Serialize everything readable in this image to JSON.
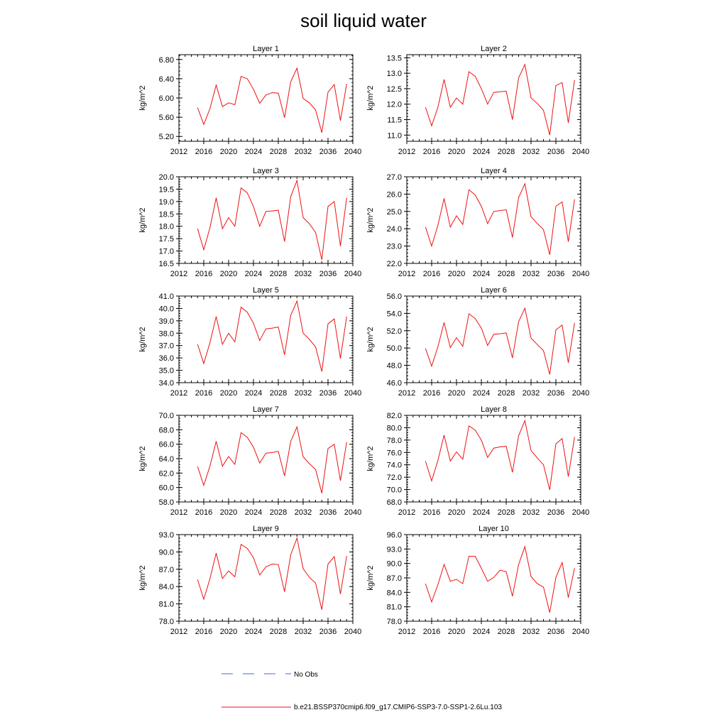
{
  "title": "soil liquid water",
  "legend": {
    "obs_label": "No Obs",
    "obs_color": "#4466dd",
    "model_label": "b.e21.BSSP370cmip6.f09_g17.CMIP6-SSP3-7.0-SSP1-2.6Lu.103",
    "model_color": "#ee1111"
  },
  "chart_data": [
    {
      "type": "line",
      "title": "Layer 1",
      "ylabel": "kg/m^2",
      "xlim": [
        2012,
        2040
      ],
      "ylim": [
        5.1,
        6.9
      ],
      "x_ticks": [
        2012,
        2016,
        2020,
        2024,
        2028,
        2032,
        2036,
        2040
      ],
      "x_tick_labels": [
        "2012",
        "2016",
        "2020",
        "2024",
        "2028",
        "2032",
        "2036",
        "2040"
      ],
      "y_ticks": [
        5.2,
        5.6,
        6.0,
        6.4,
        6.8
      ],
      "y_tick_labels": [
        "5.20",
        "5.60",
        "6.00",
        "6.40",
        "6.80"
      ],
      "x": [
        2015,
        2016,
        2017,
        2018,
        2019,
        2020,
        2021,
        2022,
        2023,
        2024,
        2025,
        2026,
        2027,
        2028,
        2029,
        2030,
        2031,
        2032,
        2033,
        2034,
        2035,
        2036,
        2037,
        2038,
        2039
      ],
      "series": [
        {
          "values": [
            5.8,
            5.45,
            5.78,
            6.27,
            5.82,
            5.9,
            5.86,
            6.45,
            6.4,
            6.18,
            5.89,
            6.06,
            6.11,
            6.1,
            5.59,
            6.34,
            6.62,
            5.99,
            5.9,
            5.75,
            5.28,
            6.12,
            6.28,
            5.53,
            6.29
          ]
        }
      ]
    },
    {
      "type": "line",
      "title": "Layer 2",
      "ylabel": "kg/m^2",
      "xlim": [
        2012,
        2040
      ],
      "ylim": [
        10.8,
        13.6
      ],
      "x_ticks": [
        2012,
        2016,
        2020,
        2024,
        2028,
        2032,
        2036,
        2040
      ],
      "x_tick_labels": [
        "2012",
        "2016",
        "2020",
        "2024",
        "2028",
        "2032",
        "2036",
        "2040"
      ],
      "y_ticks": [
        11.0,
        11.5,
        12.0,
        12.5,
        13.0,
        13.5
      ],
      "y_tick_labels": [
        "11.0",
        "11.5",
        "12.0",
        "12.5",
        "13.0",
        "13.5"
      ],
      "x": [
        2015,
        2016,
        2017,
        2018,
        2019,
        2020,
        2021,
        2022,
        2023,
        2024,
        2025,
        2026,
        2027,
        2028,
        2029,
        2030,
        2031,
        2032,
        2033,
        2034,
        2035,
        2036,
        2037,
        2038,
        2039
      ],
      "series": [
        {
          "values": [
            11.9,
            11.3,
            11.9,
            12.8,
            11.9,
            12.2,
            12.0,
            13.05,
            12.9,
            12.5,
            12.0,
            12.38,
            12.4,
            12.42,
            11.5,
            12.85,
            13.28,
            12.2,
            12.02,
            11.8,
            11.0,
            12.6,
            12.7,
            11.4,
            12.78
          ]
        }
      ]
    },
    {
      "type": "line",
      "title": "Layer 3",
      "ylabel": "kg/m^2",
      "xlim": [
        2012,
        2040
      ],
      "ylim": [
        16.5,
        20.0
      ],
      "x_ticks": [
        2012,
        2016,
        2020,
        2024,
        2028,
        2032,
        2036,
        2040
      ],
      "x_tick_labels": [
        "2012",
        "2016",
        "2020",
        "2024",
        "2028",
        "2032",
        "2036",
        "2040"
      ],
      "y_ticks": [
        16.5,
        17.0,
        17.5,
        18.0,
        18.5,
        19.0,
        19.5,
        20.0
      ],
      "y_tick_labels": [
        "16.5",
        "17.0",
        "17.5",
        "18.0",
        "18.5",
        "19.0",
        "19.5",
        "20.0"
      ],
      "x": [
        2015,
        2016,
        2017,
        2018,
        2019,
        2020,
        2021,
        2022,
        2023,
        2024,
        2025,
        2026,
        2027,
        2028,
        2029,
        2030,
        2031,
        2032,
        2033,
        2034,
        2035,
        2036,
        2037,
        2038,
        2039
      ],
      "series": [
        {
          "values": [
            17.9,
            17.05,
            17.95,
            19.15,
            17.9,
            18.35,
            18.0,
            19.55,
            19.35,
            18.8,
            18.0,
            18.6,
            18.62,
            18.65,
            17.38,
            19.2,
            19.85,
            18.35,
            18.1,
            17.75,
            16.65,
            18.8,
            19.0,
            17.2,
            19.15
          ]
        }
      ]
    },
    {
      "type": "line",
      "title": "Layer 4",
      "ylabel": "kg/m^2",
      "xlim": [
        2012,
        2040
      ],
      "ylim": [
        22.0,
        27.0
      ],
      "x_ticks": [
        2012,
        2016,
        2020,
        2024,
        2028,
        2032,
        2036,
        2040
      ],
      "x_tick_labels": [
        "2012",
        "2016",
        "2020",
        "2024",
        "2028",
        "2032",
        "2036",
        "2040"
      ],
      "y_ticks": [
        22.0,
        23.0,
        24.0,
        25.0,
        26.0,
        27.0
      ],
      "y_tick_labels": [
        "22.0",
        "23.0",
        "24.0",
        "25.0",
        "26.0",
        "27.0"
      ],
      "x": [
        2015,
        2016,
        2017,
        2018,
        2019,
        2020,
        2021,
        2022,
        2023,
        2024,
        2025,
        2026,
        2027,
        2028,
        2029,
        2030,
        2031,
        2032,
        2033,
        2034,
        2035,
        2036,
        2037,
        2038,
        2039
      ],
      "series": [
        {
          "values": [
            24.1,
            23.0,
            24.2,
            25.75,
            24.1,
            24.75,
            24.25,
            26.25,
            25.95,
            25.3,
            24.3,
            25.0,
            25.05,
            25.1,
            23.5,
            25.8,
            26.6,
            24.7,
            24.3,
            23.95,
            22.5,
            25.3,
            25.55,
            23.25,
            25.7
          ]
        }
      ]
    },
    {
      "type": "line",
      "title": "Layer 5",
      "ylabel": "kg/m^2",
      "xlim": [
        2012,
        2040
      ],
      "ylim": [
        34.0,
        41.0
      ],
      "x_ticks": [
        2012,
        2016,
        2020,
        2024,
        2028,
        2032,
        2036,
        2040
      ],
      "x_tick_labels": [
        "2012",
        "2016",
        "2020",
        "2024",
        "2028",
        "2032",
        "2036",
        "2040"
      ],
      "y_ticks": [
        34.0,
        35.0,
        36.0,
        37.0,
        38.0,
        39.0,
        40.0,
        41.0
      ],
      "y_tick_labels": [
        "34.0",
        "35.0",
        "36.0",
        "37.0",
        "38.0",
        "39.0",
        "40.0",
        "41.0"
      ],
      "x": [
        2015,
        2016,
        2017,
        2018,
        2019,
        2020,
        2021,
        2022,
        2023,
        2024,
        2025,
        2026,
        2027,
        2028,
        2029,
        2030,
        2031,
        2032,
        2033,
        2034,
        2035,
        2036,
        2037,
        2038,
        2039
      ],
      "series": [
        {
          "values": [
            37.1,
            35.55,
            37.25,
            39.35,
            37.1,
            38.0,
            37.3,
            40.1,
            39.7,
            38.8,
            37.4,
            38.35,
            38.4,
            38.5,
            36.25,
            39.45,
            40.6,
            38.0,
            37.5,
            36.9,
            34.9,
            38.75,
            39.15,
            35.95,
            39.35
          ]
        }
      ]
    },
    {
      "type": "line",
      "title": "Layer 6",
      "ylabel": "kg/m^2",
      "xlim": [
        2012,
        2040
      ],
      "ylim": [
        46.0,
        56.0
      ],
      "x_ticks": [
        2012,
        2016,
        2020,
        2024,
        2028,
        2032,
        2036,
        2040
      ],
      "x_tick_labels": [
        "2012",
        "2016",
        "2020",
        "2024",
        "2028",
        "2032",
        "2036",
        "2040"
      ],
      "y_ticks": [
        46.0,
        48.0,
        50.0,
        52.0,
        54.0,
        56.0
      ],
      "y_tick_labels": [
        "46.0",
        "48.0",
        "50.0",
        "52.0",
        "54.0",
        "56.0"
      ],
      "x": [
        2015,
        2016,
        2017,
        2018,
        2019,
        2020,
        2021,
        2022,
        2023,
        2024,
        2025,
        2026,
        2027,
        2028,
        2029,
        2030,
        2031,
        2032,
        2033,
        2034,
        2035,
        2036,
        2037,
        2038,
        2039
      ],
      "series": [
        {
          "values": [
            49.95,
            47.9,
            50.15,
            52.95,
            50.05,
            51.2,
            50.2,
            53.95,
            53.4,
            52.3,
            50.3,
            51.6,
            51.65,
            51.75,
            48.85,
            53.05,
            54.6,
            51.15,
            50.4,
            49.7,
            46.95,
            52.1,
            52.65,
            48.3,
            52.9
          ]
        }
      ]
    },
    {
      "type": "line",
      "title": "Layer 7",
      "ylabel": "kg/m^2",
      "xlim": [
        2012,
        2040
      ],
      "ylim": [
        58.0,
        70.0
      ],
      "x_ticks": [
        2012,
        2016,
        2020,
        2024,
        2028,
        2032,
        2036,
        2040
      ],
      "x_tick_labels": [
        "2012",
        "2016",
        "2020",
        "2024",
        "2028",
        "2032",
        "2036",
        "2040"
      ],
      "y_ticks": [
        58.0,
        60.0,
        62.0,
        64.0,
        66.0,
        68.0,
        70.0
      ],
      "y_tick_labels": [
        "58.0",
        "60.0",
        "62.0",
        "64.0",
        "66.0",
        "68.0",
        "70.0"
      ],
      "x": [
        2015,
        2016,
        2017,
        2018,
        2019,
        2020,
        2021,
        2022,
        2023,
        2024,
        2025,
        2026,
        2027,
        2028,
        2029,
        2030,
        2031,
        2032,
        2033,
        2034,
        2035,
        2036,
        2037,
        2038,
        2039
      ],
      "series": [
        {
          "values": [
            62.9,
            60.3,
            63.0,
            66.4,
            62.95,
            64.3,
            63.2,
            67.6,
            66.95,
            65.6,
            63.4,
            64.75,
            64.85,
            65.0,
            61.6,
            66.4,
            68.4,
            64.25,
            63.3,
            62.5,
            59.2,
            65.4,
            66.0,
            60.95,
            66.3
          ]
        }
      ]
    },
    {
      "type": "line",
      "title": "Layer 8",
      "ylabel": "kg/m^2",
      "xlim": [
        2012,
        2040
      ],
      "ylim": [
        68.0,
        82.0
      ],
      "x_ticks": [
        2012,
        2016,
        2020,
        2024,
        2028,
        2032,
        2036,
        2040
      ],
      "x_tick_labels": [
        "2012",
        "2016",
        "2020",
        "2024",
        "2028",
        "2032",
        "2036",
        "2040"
      ],
      "y_ticks": [
        68.0,
        70.0,
        72.0,
        74.0,
        76.0,
        78.0,
        80.0,
        82.0
      ],
      "y_tick_labels": [
        "68.0",
        "70.0",
        "72.0",
        "74.0",
        "76.0",
        "78.0",
        "80.0",
        "82.0"
      ],
      "x": [
        2015,
        2016,
        2017,
        2018,
        2019,
        2020,
        2021,
        2022,
        2023,
        2024,
        2025,
        2026,
        2027,
        2028,
        2029,
        2030,
        2031,
        2032,
        2033,
        2034,
        2035,
        2036,
        2037,
        2038,
        2039
      ],
      "series": [
        {
          "values": [
            74.6,
            71.4,
            74.7,
            78.8,
            74.6,
            76.1,
            74.9,
            80.3,
            79.6,
            78.0,
            75.2,
            76.7,
            76.9,
            77.0,
            72.8,
            78.7,
            81.15,
            76.3,
            75.1,
            74.0,
            69.95,
            77.4,
            78.25,
            72.1,
            78.5
          ]
        }
      ]
    },
    {
      "type": "line",
      "title": "Layer 9",
      "ylabel": "kg/m^2",
      "xlim": [
        2012,
        2040
      ],
      "ylim": [
        78.0,
        93.0
      ],
      "x_ticks": [
        2012,
        2016,
        2020,
        2024,
        2028,
        2032,
        2036,
        2040
      ],
      "x_tick_labels": [
        "2012",
        "2016",
        "2020",
        "2024",
        "2028",
        "2032",
        "2036",
        "2040"
      ],
      "y_ticks": [
        78.0,
        81.0,
        84.0,
        87.0,
        90.0,
        93.0
      ],
      "y_tick_labels": [
        "78.0",
        "81.0",
        "84.0",
        "87.0",
        "90.0",
        "93.0"
      ],
      "x": [
        2015,
        2016,
        2017,
        2018,
        2019,
        2020,
        2021,
        2022,
        2023,
        2024,
        2025,
        2026,
        2027,
        2028,
        2029,
        2030,
        2031,
        2032,
        2033,
        2034,
        2035,
        2036,
        2037,
        2038,
        2039
      ],
      "series": [
        {
          "values": [
            85.2,
            81.8,
            85.4,
            89.8,
            85.4,
            86.7,
            85.7,
            91.3,
            90.6,
            89.0,
            86.0,
            87.4,
            87.9,
            87.8,
            83.1,
            89.5,
            92.4,
            87.1,
            85.6,
            84.6,
            80.0,
            87.9,
            89.2,
            82.7,
            89.3
          ]
        }
      ]
    },
    {
      "type": "line",
      "title": "Layer 10",
      "ylabel": "kg/m^2",
      "xlim": [
        2012,
        2040
      ],
      "ylim": [
        78.0,
        96.0
      ],
      "x_ticks": [
        2012,
        2016,
        2020,
        2024,
        2028,
        2032,
        2036,
        2040
      ],
      "x_tick_labels": [
        "2012",
        "2016",
        "2020",
        "2024",
        "2028",
        "2032",
        "2036",
        "2040"
      ],
      "y_ticks": [
        78.0,
        81.0,
        84.0,
        87.0,
        90.0,
        93.0,
        96.0
      ],
      "y_tick_labels": [
        "78.0",
        "81.0",
        "84.0",
        "87.0",
        "90.0",
        "93.0",
        "96.0"
      ],
      "x": [
        2015,
        2016,
        2017,
        2018,
        2019,
        2020,
        2021,
        2022,
        2023,
        2024,
        2025,
        2026,
        2027,
        2028,
        2029,
        2030,
        2031,
        2032,
        2033,
        2034,
        2035,
        2036,
        2037,
        2038,
        2039
      ],
      "series": [
        {
          "values": [
            85.8,
            82.0,
            85.6,
            89.8,
            86.3,
            86.7,
            85.8,
            91.5,
            91.5,
            89.0,
            86.3,
            87.1,
            88.6,
            88.3,
            83.2,
            89.8,
            93.5,
            87.3,
            85.8,
            85.1,
            79.8,
            87.1,
            90.2,
            82.9,
            89.0
          ]
        }
      ]
    }
  ]
}
